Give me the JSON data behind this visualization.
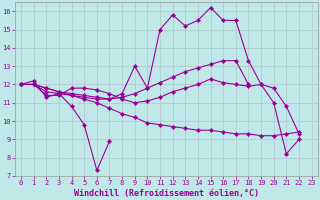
{
  "background_color": "#c0e8e8",
  "grid_color": "#b0c8c8",
  "line_color": "#990099",
  "marker": "D",
  "markersize": 2.2,
  "linewidth": 0.8,
  "x_hours": [
    0,
    1,
    2,
    3,
    4,
    5,
    6,
    7,
    8,
    9,
    10,
    11,
    12,
    13,
    14,
    15,
    16,
    17,
    18,
    19,
    20,
    21,
    22,
    23
  ],
  "series": [
    [
      12.0,
      12.2,
      11.3,
      11.5,
      10.8,
      9.8,
      7.3,
      8.9,
      null,
      null,
      null,
      null,
      null,
      null,
      null,
      null,
      null,
      null,
      null,
      null,
      null,
      null,
      null,
      null
    ],
    [
      12.0,
      12.0,
      11.4,
      11.4,
      11.8,
      11.8,
      11.7,
      11.5,
      11.2,
      11.0,
      11.1,
      11.3,
      11.6,
      11.8,
      12.0,
      12.3,
      12.1,
      12.0,
      11.9,
      12.0,
      11.8,
      10.8,
      9.3,
      null
    ],
    [
      12.0,
      12.0,
      11.8,
      11.6,
      11.4,
      11.2,
      11.0,
      10.7,
      10.4,
      10.2,
      9.9,
      9.8,
      9.7,
      9.6,
      9.5,
      9.5,
      9.4,
      9.3,
      9.3,
      9.2,
      9.2,
      9.3,
      9.4,
      null
    ],
    [
      12.0,
      12.0,
      11.8,
      11.6,
      11.5,
      11.4,
      11.3,
      11.2,
      11.5,
      13.0,
      11.8,
      15.0,
      15.8,
      15.2,
      15.5,
      16.2,
      15.5,
      15.5,
      13.3,
      12.0,
      11.0,
      8.2,
      9.0,
      null
    ],
    [
      12.0,
      12.0,
      11.6,
      11.5,
      11.4,
      11.3,
      11.2,
      11.2,
      11.3,
      11.5,
      11.8,
      12.1,
      12.4,
      12.7,
      12.9,
      13.1,
      13.3,
      13.3,
      12.0,
      null,
      null,
      null,
      null,
      null
    ]
  ],
  "ylim": [
    7,
    16.5
  ],
  "yticks": [
    7,
    8,
    9,
    10,
    11,
    12,
    13,
    14,
    15,
    16
  ],
  "xlim": [
    -0.5,
    23.5
  ],
  "xticks": [
    0,
    1,
    2,
    3,
    4,
    5,
    6,
    7,
    8,
    9,
    10,
    11,
    12,
    13,
    14,
    15,
    16,
    17,
    18,
    19,
    20,
    21,
    22,
    23
  ],
  "xlabel": "Windchill (Refroidissement éolien,°C)",
  "xlabel_fontsize": 6.0,
  "tick_fontsize": 5.0
}
